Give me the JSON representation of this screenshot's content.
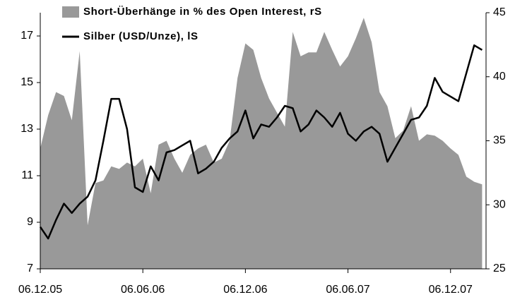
{
  "chart_data": {
    "type": "combo",
    "categories": [
      "06.12.05",
      null,
      null,
      null,
      null,
      null,
      null,
      null,
      null,
      null,
      null,
      null,
      null,
      "06.06.06",
      null,
      null,
      null,
      null,
      null,
      null,
      null,
      null,
      null,
      null,
      null,
      null,
      "06.12.06",
      null,
      null,
      null,
      null,
      null,
      null,
      null,
      null,
      null,
      null,
      null,
      null,
      "06.06.07",
      null,
      null,
      null,
      null,
      null,
      null,
      null,
      null,
      null,
      null,
      null,
      null,
      "06.12.07",
      null,
      null,
      null,
      null
    ],
    "series": [
      {
        "name": "Short-Überhänge in % des Open Interest, rS",
        "type": "area",
        "axis": "y2",
        "color": "#999999",
        "values": [
          34.4,
          37,
          38.8,
          38.5,
          36.6,
          42,
          28.4,
          31.7,
          31.9,
          33,
          32.8,
          33.3,
          33,
          33.6,
          30.9,
          34.7,
          35,
          33.6,
          32.5,
          33.9,
          34.4,
          34.7,
          33.3,
          33.6,
          35,
          39.9,
          42.6,
          42.1,
          39.9,
          38.3,
          37.2,
          36.1,
          43.5,
          41.6,
          41.9,
          41.9,
          43.5,
          42.1,
          40.8,
          41.6,
          43,
          44.6,
          42.7,
          38.8,
          37.7,
          35.2,
          35.8,
          37.7,
          35,
          35.5,
          35.4,
          35,
          34.4,
          33.9,
          32.2,
          31.8,
          31.6
        ]
      },
      {
        "name": "Silber (USD/Unze), lS",
        "type": "line",
        "axis": "y",
        "color": "#000000",
        "values": [
          8.8,
          8.3,
          9.1,
          9.8,
          9.4,
          9.8,
          10.1,
          10.8,
          12.5,
          14.3,
          14.3,
          13.0,
          10.5,
          10.3,
          11.4,
          10.8,
          12.0,
          12.1,
          12.3,
          12.5,
          11.1,
          11.3,
          11.6,
          12.2,
          12.6,
          12.9,
          13.8,
          12.6,
          13.2,
          13.1,
          13.5,
          14.0,
          13.9,
          12.9,
          13.2,
          13.8,
          13.5,
          13.1,
          13.7,
          12.8,
          12.5,
          12.9,
          13.1,
          12.8,
          11.6,
          12.2,
          12.8,
          13.4,
          13.5,
          14.0,
          15.2,
          14.6,
          14.4,
          14.2,
          15.4,
          16.6,
          16.4
        ]
      }
    ],
    "ylim": [
      7,
      18
    ],
    "yticks": [
      7,
      9,
      11,
      13,
      15,
      17
    ],
    "y2lim": [
      25,
      45
    ],
    "y2ticks": [
      25,
      30,
      35,
      40,
      45
    ]
  }
}
